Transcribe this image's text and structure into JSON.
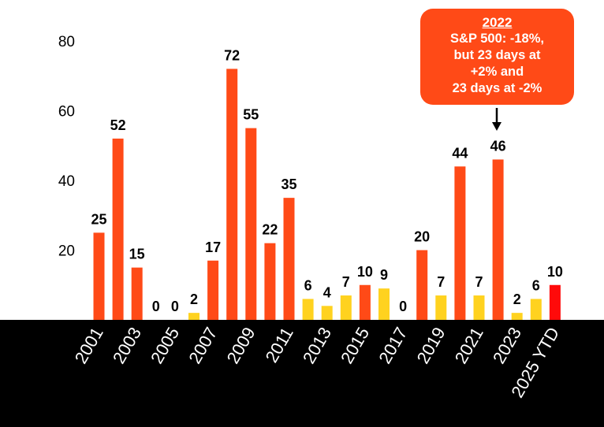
{
  "colors": {
    "orange": "#FF4A17",
    "yellow": "#FFD21F",
    "red": "#FF0A0A",
    "axis_band": "#000000",
    "callout_bg": "#FF4A17"
  },
  "chart_data": {
    "type": "bar",
    "title": "",
    "xlabel": "",
    "ylabel": "",
    "ylim": [
      0,
      80
    ],
    "yticks": [
      20,
      40,
      60,
      80
    ],
    "grid": false,
    "categories": [
      "2001",
      "2002",
      "2003",
      "2004",
      "2005",
      "2006",
      "2007",
      "2008",
      "2009",
      "2010",
      "2011",
      "2012",
      "2013",
      "2014",
      "2015",
      "2016",
      "2017",
      "2018",
      "2019",
      "2020",
      "2021",
      "2022",
      "2023",
      "2024",
      "2025 YTD"
    ],
    "xtick_labels": [
      "2001",
      "2003",
      "2005",
      "2007",
      "2009",
      "2011",
      "2013",
      "2015",
      "2017",
      "2019",
      "2021",
      "2023",
      "2025 YTD"
    ],
    "xtick_categories": [
      "2001",
      "2003",
      "2005",
      "2007",
      "2009",
      "2011",
      "2013",
      "2015",
      "2017",
      "2019",
      "2021",
      "2023",
      "2025 YTD"
    ],
    "values": [
      25,
      52,
      15,
      0,
      0,
      2,
      17,
      72,
      55,
      22,
      35,
      6,
      4,
      7,
      10,
      9,
      0,
      20,
      7,
      44,
      7,
      46,
      2,
      6,
      10
    ],
    "bar_colors": [
      "orange",
      "orange",
      "orange",
      "orange",
      "orange",
      "yellow",
      "orange",
      "orange",
      "orange",
      "orange",
      "orange",
      "yellow",
      "yellow",
      "yellow",
      "orange",
      "yellow",
      "orange",
      "orange",
      "yellow",
      "orange",
      "yellow",
      "orange",
      "yellow",
      "yellow",
      "red"
    ],
    "annotation": {
      "target": "2022",
      "title": "2022",
      "lines": [
        "S&P 500: -18%,",
        "but 23 days at",
        "+2% and",
        "23 days at -2%"
      ]
    }
  }
}
